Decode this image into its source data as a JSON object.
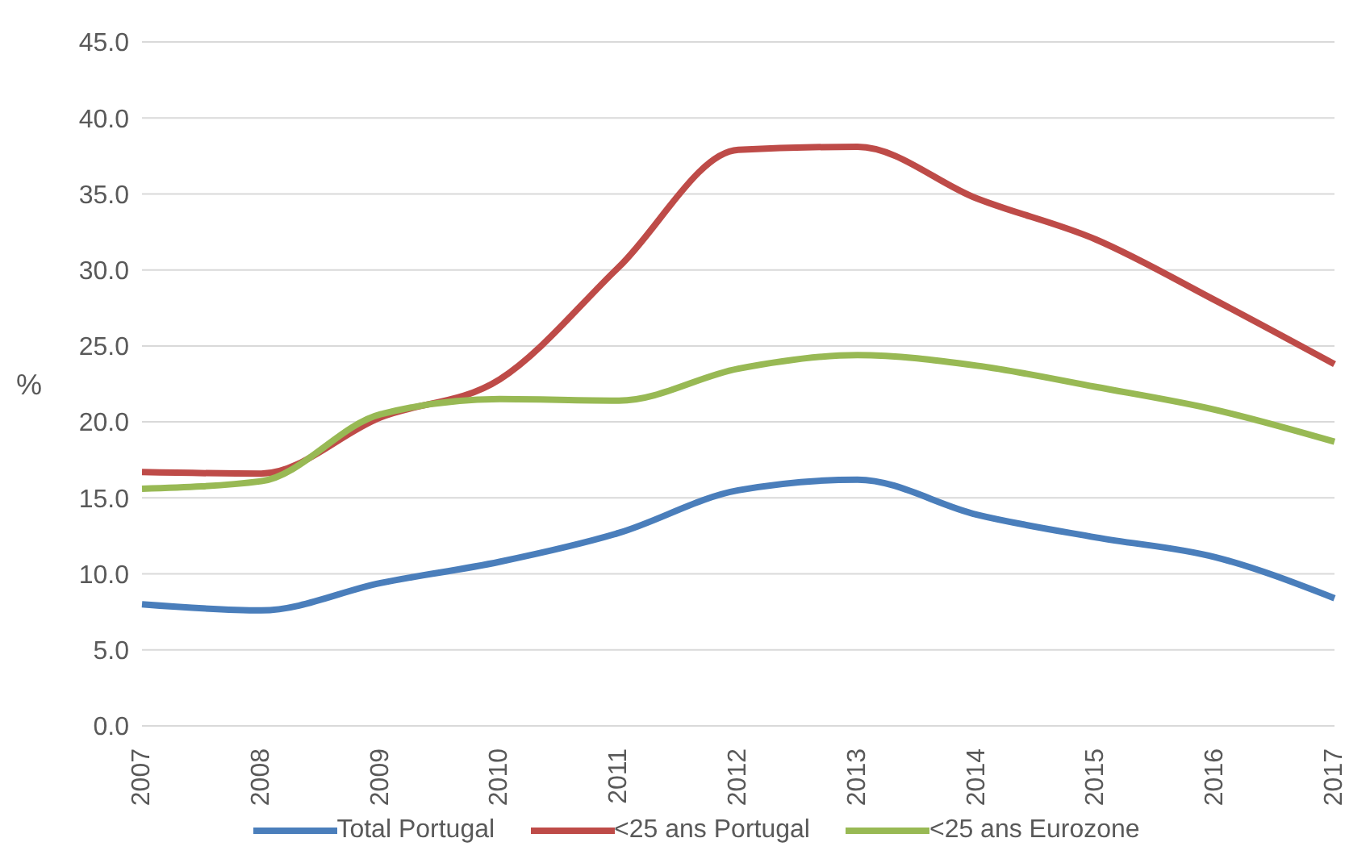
{
  "chart_data": {
    "type": "line",
    "ylabel": "%",
    "categories": [
      "2007",
      "2008",
      "2009",
      "2010",
      "2011",
      "2012",
      "2013",
      "2014",
      "2015",
      "2016",
      "2017"
    ],
    "series": [
      {
        "name": "Total Portugal",
        "color": "#4a7ebb",
        "values": [
          8.0,
          7.6,
          9.4,
          10.8,
          12.7,
          15.5,
          16.2,
          13.9,
          12.4,
          11.1,
          8.4
        ]
      },
      {
        "name": "<25 ans Portugal",
        "color": "#be4b48",
        "values": [
          16.7,
          16.6,
          20.3,
          22.8,
          30.2,
          37.9,
          38.1,
          34.7,
          32.0,
          28.0,
          23.8
        ]
      },
      {
        "name": "<25 ans Eurozone",
        "color": "#98b954",
        "values": [
          15.6,
          16.1,
          20.5,
          21.5,
          21.4,
          23.5,
          24.4,
          23.7,
          22.3,
          20.8,
          18.7
        ]
      }
    ],
    "ylim": [
      0,
      45
    ],
    "yticks": [
      {
        "value": 0,
        "label": "0.0"
      },
      {
        "value": 5,
        "label": "5.0"
      },
      {
        "value": 10,
        "label": "10.0"
      },
      {
        "value": 15,
        "label": "15.0"
      },
      {
        "value": 20,
        "label": "20.0"
      },
      {
        "value": 25,
        "label": "25.0"
      },
      {
        "value": 30,
        "label": "30.0"
      },
      {
        "value": 35,
        "label": "35.0"
      },
      {
        "value": 40,
        "label": "40.0"
      },
      {
        "value": 45,
        "label": "45.0"
      }
    ],
    "grid": "y",
    "legend": "bottom",
    "marker": "none",
    "line_style": "solid"
  }
}
